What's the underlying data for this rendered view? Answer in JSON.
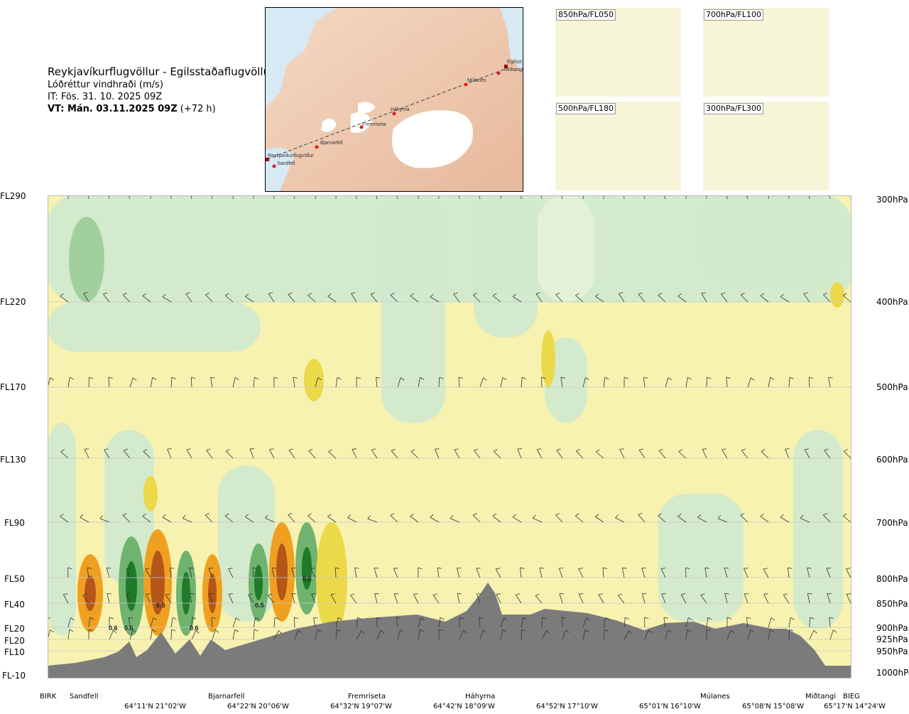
{
  "header": {
    "route": "Reykjavíkurflugvöllur - Egilsstaðaflugvöllur",
    "parameter": "Lóðréttur vindhraði (m/s)",
    "it_time": "IT: Fös. 31. 10. 2025 09Z",
    "vt_time": "VT: Mán. 03.11.2025 09Z",
    "lead": "(+72 h)"
  },
  "map": {
    "stations": [
      "Reykjavíkurflugvöllur",
      "Sandfell",
      "Bjarnarfell",
      "Fremriseta",
      "Háhyrna",
      "Múlanes",
      "Egilsst",
      "Miðtangi"
    ]
  },
  "thumbnails": [
    {
      "label": "850hPa/FL050"
    },
    {
      "label": "700hPa/FL100"
    },
    {
      "label": "500hPa/FL180"
    },
    {
      "label": "300hPa/FL300"
    }
  ],
  "flight_levels": [
    "FL290",
    "FL220",
    "FL170",
    "FL130",
    "FL90",
    "FL50",
    "FL40",
    "FL20",
    "FL20",
    "FL10",
    "FL-10"
  ],
  "pressure_levels": [
    "300hPa",
    "400hPa",
    "500hPa",
    "600hPa",
    "700hPa",
    "800hPa",
    "850hPa",
    "900hPa",
    "925hPa",
    "950hPa",
    "1000hPa"
  ],
  "locations": [
    "BIRK",
    "Sandfell",
    "Bjarnarfell",
    "Fremriseta",
    "Háhyrna",
    "Múlanes",
    "Miðtangi",
    "BIEG"
  ],
  "coordinates": [
    "64°11'N 21°02'W",
    "64°22'N 20°06'W",
    "64°32'N 19°07'W",
    "64°42'N 18°09'W",
    "64°52'N 17°10'W",
    "65°01'N 16°10'W",
    "65°08'N 15°08'W",
    "65°17'N 14°24'W"
  ],
  "contour_labels": [
    "0.6",
    "0.6",
    "0.5",
    "0.6",
    "0.5",
    "0.5"
  ],
  "colors": {
    "strong_down": "#1f7a2a",
    "moderate_down": "#6fb36f",
    "weak_down": "#cfe9cf",
    "neutral": "#f7f2b0",
    "weak_up": "#ecd94a",
    "moderate_up": "#f0a020",
    "strong_up": "#b4561a",
    "terrain": "#7b7b7b"
  }
}
